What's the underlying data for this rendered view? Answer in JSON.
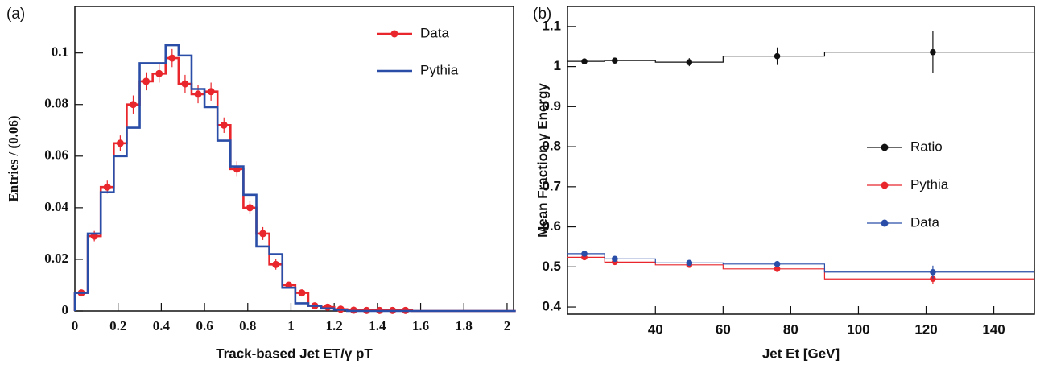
{
  "chart_data": [
    {
      "type": "histogram",
      "panel_label": "(a)",
      "x_label": "Track-based Jet ET/γ pT",
      "y_label": "Entries / (0.06)",
      "bins": [
        0,
        0.06,
        0.12,
        0.18,
        0.24,
        0.3,
        0.36,
        0.42,
        0.48,
        0.54,
        0.6,
        0.66,
        0.72,
        0.78,
        0.84,
        0.9,
        0.96,
        1.02,
        1.08,
        1.14,
        1.2,
        1.26,
        1.32,
        1.38,
        1.44,
        1.5,
        1.56,
        1.62,
        1.68,
        1.74,
        1.8,
        1.86,
        1.92,
        1.98,
        2.04
      ],
      "xlim": [
        0,
        2.03
      ],
      "ylim": [
        0,
        0.118
      ],
      "xticks": [
        0,
        0.2,
        0.4,
        0.6,
        0.8,
        1,
        1.2,
        1.4,
        1.6,
        1.8,
        2
      ],
      "yticks": [
        0,
        0.02,
        0.04,
        0.06,
        0.08,
        0.1
      ],
      "legend": "upper right",
      "series": [
        {
          "name": "Data",
          "color": "#e8262c",
          "marker": true,
          "values": [
            0.007,
            0.029,
            0.048,
            0.065,
            0.08,
            0.089,
            0.092,
            0.098,
            0.088,
            0.084,
            0.085,
            0.072,
            0.055,
            0.04,
            0.03,
            0.018,
            0.01,
            0.007,
            0.002,
            0.0015,
            0.0007,
            0.0003,
            0.0002,
            0.0002,
            0.0002,
            0.0002,
            0,
            0,
            0,
            0,
            0,
            0,
            0,
            0
          ],
          "errors": [
            0.001,
            0.002,
            0.0025,
            0.003,
            0.0035,
            0.0035,
            0.0035,
            0.0035,
            0.0035,
            0.0035,
            0.0035,
            0.003,
            0.003,
            0.0025,
            0.0025,
            0.002,
            0.001,
            0.001,
            0.0005,
            0.0005,
            0,
            0,
            0,
            0,
            0,
            0,
            0,
            0,
            0,
            0,
            0,
            0,
            0,
            0
          ]
        },
        {
          "name": "Pythia",
          "color": "#2a4ea8",
          "marker": false,
          "values": [
            0.007,
            0.03,
            0.046,
            0.06,
            0.071,
            0.096,
            0.096,
            0.103,
            0.099,
            0.086,
            0.079,
            0.066,
            0.056,
            0.045,
            0.025,
            0.022,
            0.009,
            0.003,
            0.002,
            0.001,
            0.0005,
            0,
            0,
            0,
            0,
            0,
            0,
            0,
            0,
            0,
            0,
            0,
            0,
            0
          ]
        }
      ]
    },
    {
      "type": "step",
      "panel_label": "(b)",
      "x_label": "Jet Et [GeV]",
      "y_label": "Mean Fraction γ Energy",
      "bins": [
        14,
        25,
        40,
        60,
        90,
        152
      ],
      "x": [
        19,
        28,
        50,
        76,
        122
      ],
      "xlim": [
        14,
        152
      ],
      "ylim": [
        0.382,
        1.15
      ],
      "xticks": [
        40,
        60,
        80,
        100,
        120,
        140
      ],
      "yticks": [
        0.4,
        0.5,
        0.6,
        0.7,
        0.8,
        0.9,
        1,
        1.1
      ],
      "legend": "center right",
      "series": [
        {
          "name": "Ratio",
          "color": "#111111",
          "values": [
            1.013,
            1.015,
            1.011,
            1.026,
            1.036
          ],
          "errors": [
            0.004,
            0.004,
            0.01,
            0.022,
            0.052
          ]
        },
        {
          "name": "Pythia",
          "color": "#e8262c",
          "values": [
            0.524,
            0.512,
            0.505,
            0.495,
            0.47
          ],
          "errors": [
            0.003,
            0.003,
            0.004,
            0.005,
            0.012
          ]
        },
        {
          "name": "Data",
          "color": "#2a4ea8",
          "values": [
            0.533,
            0.52,
            0.51,
            0.507,
            0.487
          ],
          "errors": [
            0.003,
            0.003,
            0.004,
            0.005,
            0.016
          ]
        }
      ]
    }
  ]
}
